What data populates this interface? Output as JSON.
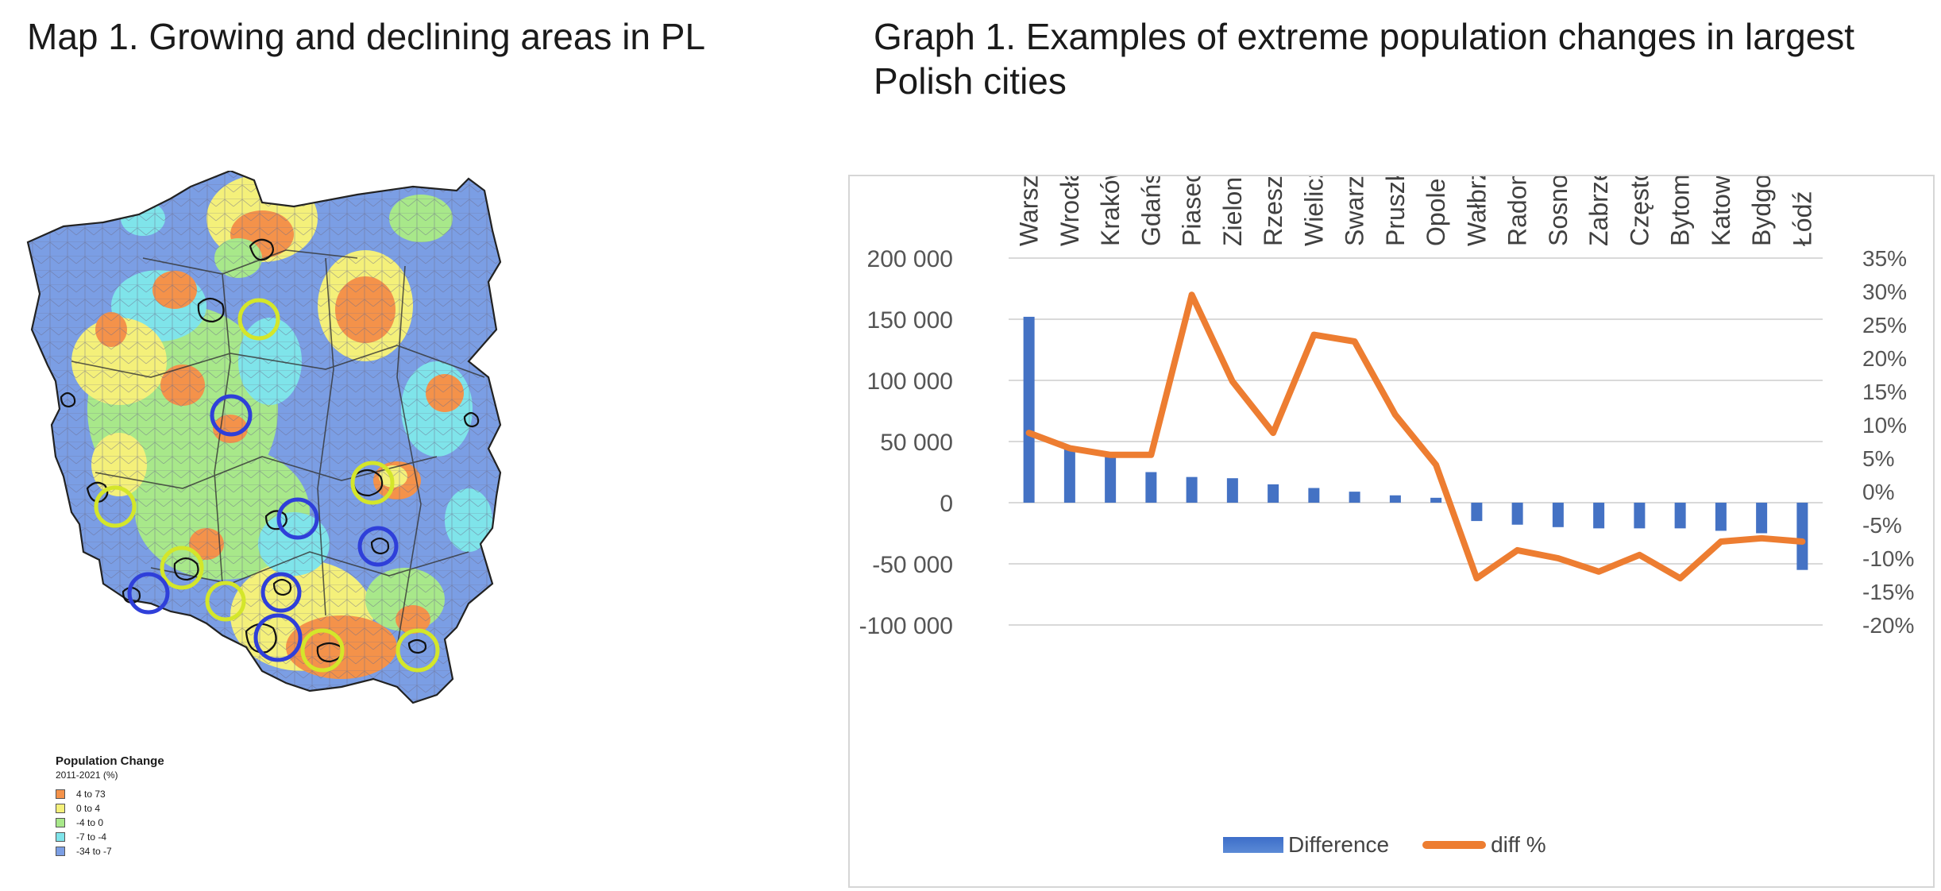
{
  "map": {
    "title": "Map 1. Growing and declining areas in PL",
    "legend": {
      "title": "Population Change",
      "subtitle": "2011-2021 (%)",
      "items": [
        {
          "label": "4 to 73",
          "color": "#f4924a"
        },
        {
          "label": "0 to  4",
          "color": "#f4f07a"
        },
        {
          "label": "-4 to  0",
          "color": "#a8e88a"
        },
        {
          "label": "-7 to -4",
          "color": "#7fe4ea"
        },
        {
          "label": "-34 to -7",
          "color": "#7b9ee4"
        }
      ]
    },
    "circle_colors": {
      "growing": "#d4e62a",
      "declining": "#2f3fd9"
    }
  },
  "chart": {
    "title": "Graph 1. Examples of extreme population changes in largest Polish cities",
    "legend": {
      "difference_label": "Difference",
      "diff_pct_label": "diff %"
    }
  },
  "chart_data": {
    "type": "bar",
    "combo": "bar + line (secondary axis)",
    "title": "Graph 1. Examples of extreme population changes in largest Polish cities",
    "categories": [
      "Warszawa",
      "Wrocław",
      "Kraków",
      "Gdańsk",
      "Piaseczno",
      "Zielona Góra",
      "Rzeszów",
      "Wieliczka",
      "Swarzędz",
      "Pruszków",
      "Opole",
      "Wałbrzych",
      "Radom",
      "Sosnowiec",
      "Zabrze",
      "Częstochowa",
      "Bytom",
      "Katowice",
      "Bydgoszcz",
      "Łódź"
    ],
    "series": [
      {
        "name": "Difference",
        "kind": "bar",
        "axis": "left",
        "color": "#4472c4",
        "values": [
          152000,
          45000,
          40000,
          25000,
          21000,
          20000,
          15000,
          12000,
          9000,
          6000,
          4000,
          -15000,
          -18000,
          -20000,
          -21000,
          -21000,
          -21000,
          -23000,
          -25000,
          -55000
        ]
      },
      {
        "name": "diff %",
        "kind": "line",
        "axis": "right",
        "color": "#ed7d31",
        "values": [
          0.088,
          0.065,
          0.055,
          0.055,
          0.295,
          0.165,
          0.088,
          0.235,
          0.225,
          0.115,
          0.04,
          -0.13,
          -0.088,
          -0.1,
          -0.12,
          -0.095,
          -0.13,
          -0.075,
          -0.07,
          -0.075
        ]
      }
    ],
    "y_left": {
      "ylim": [
        -100000,
        200000
      ],
      "ticks": [
        "200 000",
        "150 000",
        "100 000",
        "50 000",
        "0",
        "-50 000",
        "-100 000"
      ],
      "tick_values": [
        200000,
        150000,
        100000,
        50000,
        0,
        -50000,
        -100000
      ]
    },
    "y_right": {
      "ylim": [
        -0.2,
        0.35
      ],
      "ticks": [
        "35%",
        "30%",
        "25%",
        "20%",
        "15%",
        "10%",
        "5%",
        "0%",
        "-5%",
        "-10%",
        "-15%",
        "-20%"
      ],
      "tick_values": [
        0.35,
        0.3,
        0.25,
        0.2,
        0.15,
        0.1,
        0.05,
        0,
        -0.05,
        -0.1,
        -0.15,
        -0.2
      ]
    },
    "grid": true,
    "legend_position": "bottom"
  }
}
